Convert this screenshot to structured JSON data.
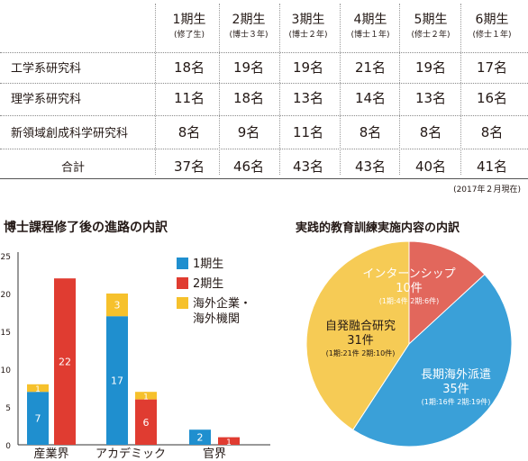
{
  "table": {
    "columns": [
      {
        "label": "1期生",
        "sub": "(修了生)"
      },
      {
        "label": "2期生",
        "sub": "(博士３年)"
      },
      {
        "label": "3期生",
        "sub": "(博士２年)"
      },
      {
        "label": "4期生",
        "sub": "(博士１年)"
      },
      {
        "label": "5期生",
        "sub": "(修士２年)"
      },
      {
        "label": "6期生",
        "sub": "(修士１年)"
      }
    ],
    "rows": [
      {
        "label": "工学系研究科",
        "values": [
          "18名",
          "19名",
          "19名",
          "21名",
          "19名",
          "17名"
        ]
      },
      {
        "label": "理学系研究科",
        "values": [
          "11名",
          "18名",
          "13名",
          "14名",
          "13名",
          "16名"
        ]
      },
      {
        "label": "新領域創成科学研究科",
        "values": [
          "8名",
          "9名",
          "11名",
          "8名",
          "8名",
          "8名"
        ]
      },
      {
        "label": "合計",
        "values": [
          "37名",
          "46名",
          "43名",
          "43名",
          "40名",
          "41名"
        ]
      }
    ],
    "note": "(2017年２月現在)"
  },
  "bar_title": "博士課程修了後の進路の内訳",
  "pie_title": "実践的教育訓練実施内容の内訳",
  "chart_data": [
    {
      "type": "bar",
      "stacked": true,
      "categories": [
        "産業界",
        "アカデミック",
        "官界"
      ],
      "series": [
        {
          "name": "1期生",
          "color": "#1f8fcf",
          "stack": "a",
          "values": [
            7,
            17,
            2
          ]
        },
        {
          "name": "2期生",
          "color": "#e03c31",
          "stack": "b",
          "values": [
            22,
            6,
            1
          ]
        },
        {
          "name": "海外企業・海外機関",
          "color": "#f6c12c",
          "stack": "a",
          "values": [
            1,
            3,
            0
          ]
        },
        {
          "name": "海外企業・海外機関",
          "color": "#f6c12c",
          "stack": "b",
          "values": [
            0,
            1,
            0
          ]
        }
      ],
      "yticks": [
        0,
        5,
        10,
        15,
        20,
        25
      ],
      "ylim": [
        0,
        25
      ],
      "legend": [
        {
          "label": "1期生",
          "color": "#1f8fcf"
        },
        {
          "label": "2期生",
          "color": "#e03c31"
        },
        {
          "label": "海外企業・海外機関",
          "color": "#f6c12c"
        }
      ],
      "legend_position": "top-right"
    },
    {
      "type": "pie",
      "slices": [
        {
          "label": "インターンシップ",
          "value": 10,
          "value_label": "10件",
          "detail": "(1期:4件 2期:6件)",
          "color": "#e2675c"
        },
        {
          "label": "長期海外派遣",
          "value": 35,
          "value_label": "35件",
          "detail": "(1期:16件 2期:19件)",
          "color": "#3aa0d8"
        },
        {
          "label": "自発融合研究",
          "value": 31,
          "value_label": "31件",
          "detail": "(1期:21件 2期:10件)",
          "color": "#f6cb55"
        }
      ]
    }
  ]
}
